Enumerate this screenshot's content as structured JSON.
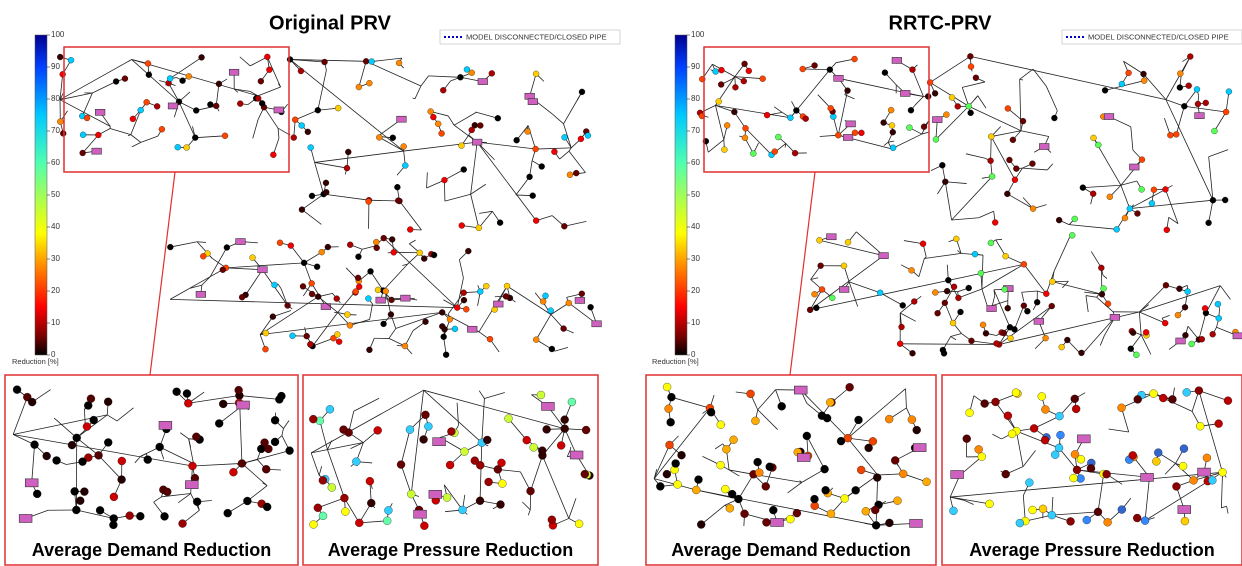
{
  "panels": [
    {
      "title": "Original PRV",
      "legend": "MODEL DISCONNECTED/CLOSED PIPE",
      "colorbar": {
        "ticks": [
          0,
          10,
          20,
          30,
          40,
          50,
          60,
          70,
          80,
          90,
          100
        ],
        "label": "Reduction [%]"
      },
      "insets": [
        {
          "caption": "Average Demand Reduction"
        },
        {
          "caption": "Average Pressure Reduction"
        }
      ]
    },
    {
      "title": "RRTC-PRV",
      "legend": "MODEL DISCONNECTED/CLOSED PIPE",
      "colorbar": {
        "ticks": [
          0,
          10,
          20,
          30,
          40,
          50,
          60,
          70,
          80,
          90,
          100
        ],
        "label": "Reduction [%]"
      },
      "insets": [
        {
          "caption": "Average Demand Reduction"
        },
        {
          "caption": "Average Pressure Reduction"
        }
      ]
    }
  ]
}
